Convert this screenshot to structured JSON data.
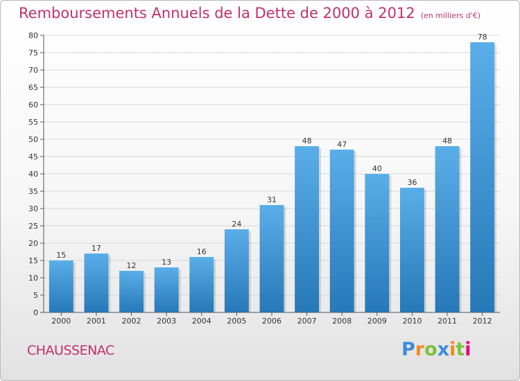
{
  "title": "Remboursements Annuels de la Dette de 2000 à 2012",
  "subtitle": "(en milliers d'€)",
  "commune": "CHAUSSENAC",
  "logo": {
    "text": "Proxiti",
    "letters": [
      {
        "ch": "P",
        "color": "#3b8ed8"
      },
      {
        "ch": "r",
        "color": "#f08a1e"
      },
      {
        "ch": "o",
        "color": "#7cc242"
      },
      {
        "ch": "x",
        "color": "#3b8ed8"
      },
      {
        "ch": "i",
        "color": "#f08a1e"
      },
      {
        "ch": "t",
        "color": "#7cc242"
      },
      {
        "ch": "i",
        "color": "#e3007e"
      }
    ]
  },
  "colors": {
    "title": "#c0306c",
    "bar_light": "#5aaee8",
    "bar_dark": "#2678b8",
    "grid": "#d8d8d8"
  },
  "chart_data": {
    "type": "bar",
    "categories": [
      "2000",
      "2001",
      "2002",
      "2003",
      "2004",
      "2005",
      "2006",
      "2007",
      "2008",
      "2009",
      "2010",
      "2011",
      "2012"
    ],
    "values": [
      15,
      17,
      12,
      13,
      16,
      24,
      31,
      48,
      47,
      40,
      36,
      48,
      78
    ],
    "ylim": [
      0,
      80
    ],
    "yticks": [
      0,
      5,
      10,
      15,
      20,
      25,
      30,
      35,
      40,
      45,
      50,
      55,
      60,
      65,
      70,
      75,
      80
    ],
    "grid": true,
    "data_labels": true
  }
}
